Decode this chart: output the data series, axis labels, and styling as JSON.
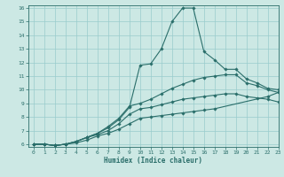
{
  "xlabel": "Humidex (Indice chaleur)",
  "bg_color": "#cce8e4",
  "grid_color": "#99cccc",
  "line_color": "#2a6e6a",
  "spine_color": "#2a6e6a",
  "xlim": [
    -0.5,
    23
  ],
  "ylim": [
    5.8,
    16.2
  ],
  "xticks": [
    0,
    1,
    2,
    3,
    4,
    5,
    6,
    7,
    8,
    9,
    10,
    11,
    12,
    13,
    14,
    15,
    16,
    17,
    18,
    19,
    20,
    21,
    22,
    23
  ],
  "yticks": [
    6,
    7,
    8,
    9,
    10,
    11,
    12,
    13,
    14,
    15,
    16
  ],
  "lines": [
    {
      "x": [
        0,
        1,
        2,
        3,
        4,
        5,
        6,
        7,
        8,
        9,
        10,
        11,
        12,
        13,
        14,
        15,
        16,
        17,
        18,
        19,
        20,
        21,
        22,
        23
      ],
      "y": [
        6.0,
        6.0,
        5.9,
        6.0,
        6.2,
        6.5,
        6.8,
        7.2,
        7.8,
        8.7,
        11.8,
        11.9,
        13.0,
        15.0,
        16.0,
        16.0,
        12.8,
        12.2,
        11.5,
        11.5,
        10.8,
        10.5,
        10.1,
        10.0
      ]
    },
    {
      "x": [
        0,
        1,
        2,
        3,
        4,
        5,
        6,
        7,
        8,
        9,
        10,
        11,
        12,
        13,
        14,
        15,
        16,
        17,
        18,
        19,
        20,
        21,
        22,
        23
      ],
      "y": [
        6.0,
        6.0,
        5.9,
        6.0,
        6.2,
        6.5,
        6.8,
        7.3,
        7.9,
        8.8,
        9.0,
        9.3,
        9.7,
        10.1,
        10.4,
        10.7,
        10.9,
        11.0,
        11.1,
        11.1,
        10.5,
        10.3,
        10.0,
        9.8
      ]
    },
    {
      "x": [
        0,
        1,
        2,
        3,
        4,
        5,
        6,
        7,
        8,
        9,
        10,
        11,
        12,
        13,
        14,
        15,
        16,
        17,
        18,
        19,
        20,
        21,
        22,
        23
      ],
      "y": [
        6.0,
        6.0,
        5.9,
        6.0,
        6.2,
        6.5,
        6.7,
        7.0,
        7.5,
        8.2,
        8.6,
        8.7,
        8.9,
        9.1,
        9.3,
        9.4,
        9.5,
        9.6,
        9.7,
        9.7,
        9.5,
        9.4,
        9.3,
        9.1
      ]
    },
    {
      "x": [
        0,
        1,
        2,
        3,
        4,
        5,
        6,
        7,
        8,
        9,
        10,
        11,
        12,
        13,
        14,
        15,
        16,
        17,
        22,
        23
      ],
      "y": [
        6.0,
        6.0,
        5.9,
        6.0,
        6.1,
        6.3,
        6.6,
        6.8,
        7.1,
        7.5,
        7.9,
        8.0,
        8.1,
        8.2,
        8.3,
        8.4,
        8.5,
        8.6,
        9.5,
        9.8
      ]
    }
  ]
}
